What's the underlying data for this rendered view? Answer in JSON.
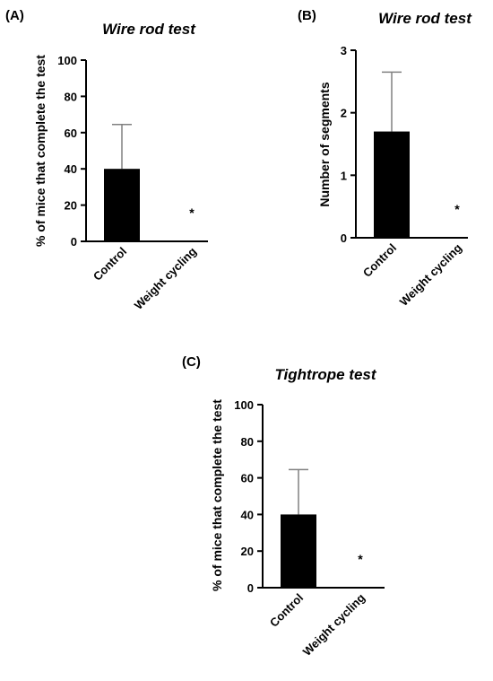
{
  "chart_data": [
    {
      "panel": "(A)",
      "type": "bar",
      "title": "Wire rod test",
      "ylabel": "% of mice that complete the test",
      "xlabel": "",
      "categories": [
        "Control",
        "Weight cycling"
      ],
      "values": [
        40,
        0
      ],
      "error_upper": [
        64.5,
        null
      ],
      "annotations": [
        "",
        "*"
      ],
      "ylim": [
        0,
        100
      ],
      "yticks": [
        0,
        20,
        40,
        60,
        80,
        100
      ],
      "bar_color": "#000000",
      "error_color": "#808080",
      "grid": false
    },
    {
      "panel": "(B)",
      "type": "bar",
      "title": "Wire rod test",
      "ylabel": "Number of segments",
      "xlabel": "",
      "categories": [
        "Control",
        "Weight cycling"
      ],
      "values": [
        1.7,
        0
      ],
      "error_upper": [
        2.65,
        null
      ],
      "annotations": [
        "",
        "*"
      ],
      "ylim": [
        0,
        3
      ],
      "yticks": [
        0,
        1,
        2,
        3
      ],
      "bar_color": "#000000",
      "error_color": "#808080",
      "grid": false
    },
    {
      "panel": "(C)",
      "type": "bar",
      "title": "Tightrope test",
      "ylabel": "% of mice that complete the test",
      "xlabel": "",
      "categories": [
        "Control",
        "Weight cycling"
      ],
      "values": [
        40,
        0
      ],
      "error_upper": [
        64.5,
        null
      ],
      "annotations": [
        "",
        "*"
      ],
      "ylim": [
        0,
        100
      ],
      "yticks": [
        0,
        20,
        40,
        60,
        80,
        100
      ],
      "bar_color": "#000000",
      "error_color": "#808080",
      "grid": false
    }
  ]
}
